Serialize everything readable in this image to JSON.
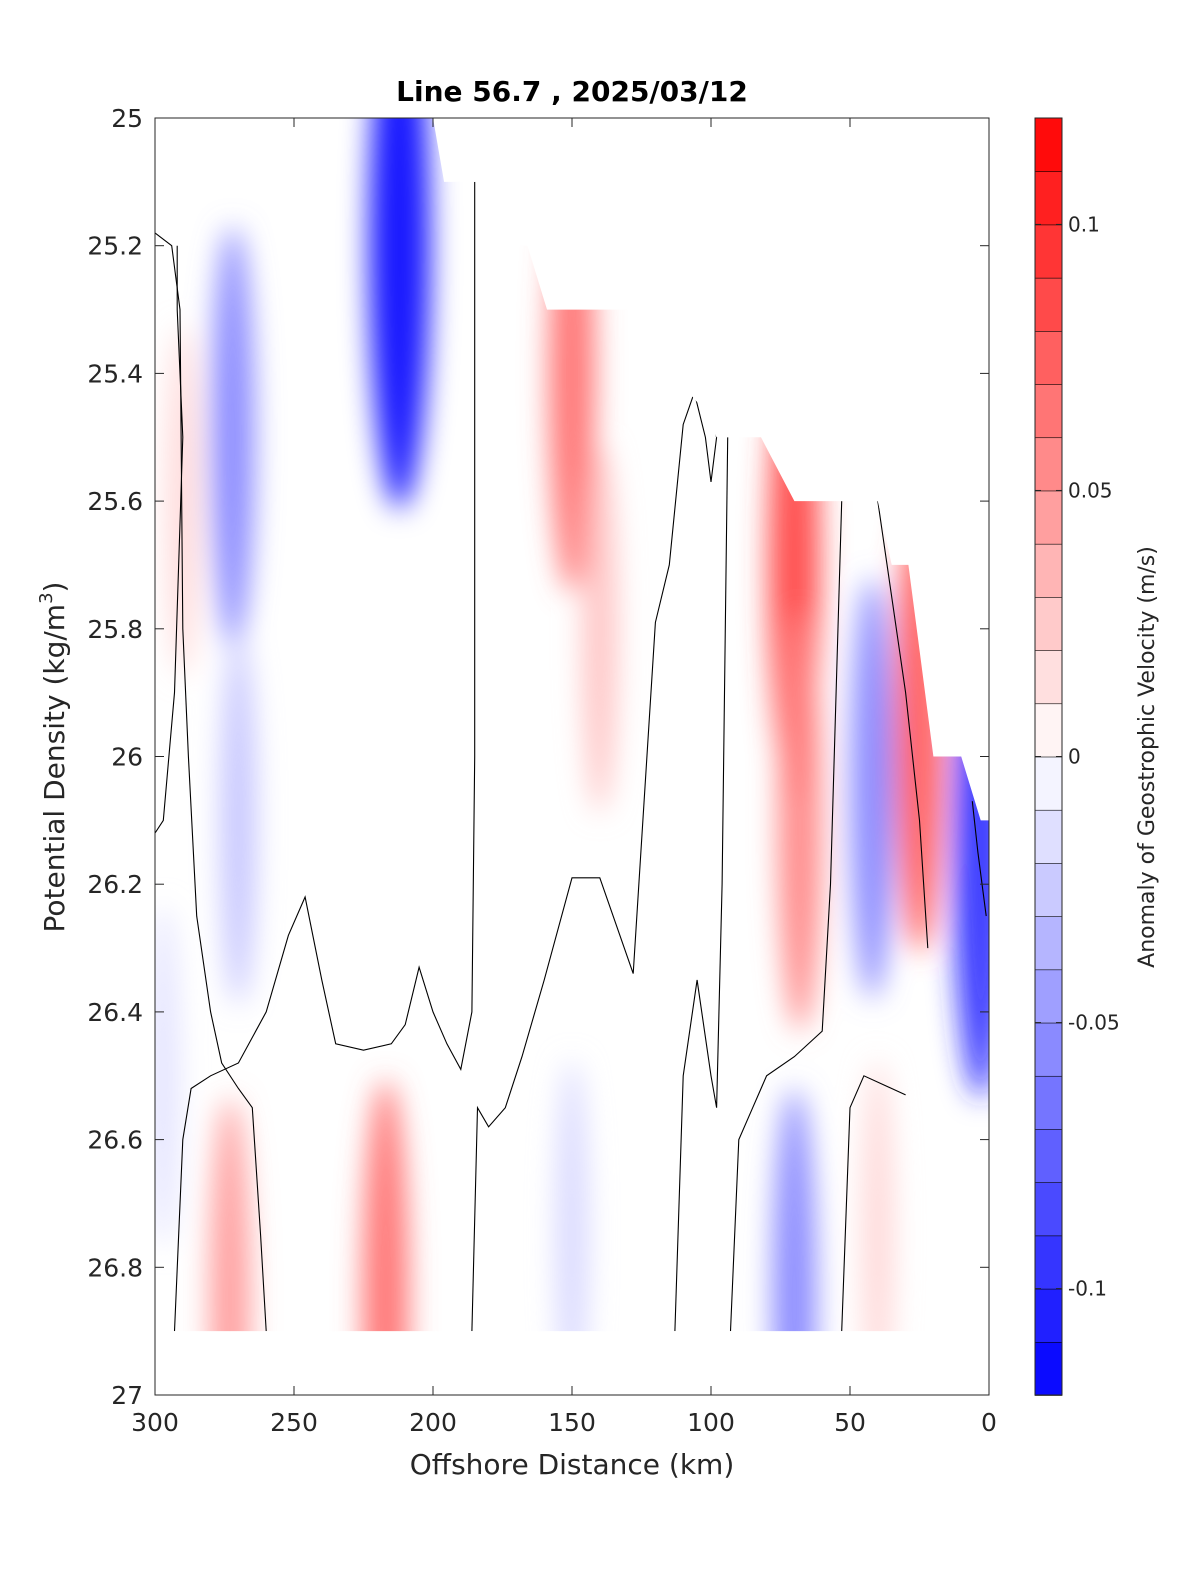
{
  "chart_data": {
    "type": "heatmap",
    "subtype": "filled-contour section",
    "title": "Line 56.7 , 2025/03/12",
    "xlabel": "Offshore Distance (km)",
    "ylabel_main": "Potential Density (kg/m",
    "ylabel_sup": "3",
    "ylabel_close": ")",
    "xlim": [
      300,
      0
    ],
    "ylim": [
      25,
      27
    ],
    "y_reversed": true,
    "x_ticks": [
      "300",
      "250",
      "200",
      "150",
      "100",
      "50",
      "0"
    ],
    "y_ticks": [
      "25",
      "25.2",
      "25.4",
      "25.6",
      "25.8",
      "26",
      "26.2",
      "26.4",
      "26.6",
      "26.8",
      "27"
    ],
    "colorbar": {
      "label": "Anomaly of Geostrophic Velocity (m/s)",
      "range": [
        -0.12,
        0.12
      ],
      "step": 0.01,
      "tick_values": [
        0.1,
        0.05,
        0,
        -0.05,
        -0.1
      ],
      "tick_labels": [
        "0.1",
        "0.05",
        "0",
        "-0.05",
        "-0.1"
      ],
      "colormap": "blue-white-red",
      "color_negative_max": "#0000ff",
      "color_positive_max": "#ff0000",
      "color_zero": "#ffffff"
    },
    "zero_contour_color": "#000000",
    "anomaly_cores": [
      {
        "x": 212,
        "y": 25.2,
        "value": -0.12
      },
      {
        "x": 272,
        "y": 25.5,
        "value": -0.06
      },
      {
        "x": 270,
        "y": 26.1,
        "value": -0.03
      },
      {
        "x": 150,
        "y": 25.4,
        "value": 0.07
      },
      {
        "x": 140,
        "y": 25.8,
        "value": 0.03
      },
      {
        "x": 290,
        "y": 25.6,
        "value": 0.02
      },
      {
        "x": 70,
        "y": 25.7,
        "value": 0.09
      },
      {
        "x": 68,
        "y": 26.1,
        "value": 0.06
      },
      {
        "x": 42,
        "y": 26.05,
        "value": -0.06
      },
      {
        "x": 25,
        "y": 25.95,
        "value": 0.08
      },
      {
        "x": 3,
        "y": 26.15,
        "value": -0.1
      },
      {
        "x": 217,
        "y": 26.85,
        "value": 0.07
      },
      {
        "x": 273,
        "y": 26.85,
        "value": 0.05
      },
      {
        "x": 150,
        "y": 26.75,
        "value": -0.02
      },
      {
        "x": 70,
        "y": 26.85,
        "value": -0.06
      },
      {
        "x": 40,
        "y": 26.75,
        "value": 0.02
      },
      {
        "x": 297,
        "y": 26.5,
        "value": -0.015
      }
    ],
    "data_extent_top": [
      [
        300,
        25
      ],
      [
        200,
        25
      ],
      [
        196,
        25.1
      ],
      [
        178,
        25.1
      ],
      [
        172,
        25.2
      ],
      [
        166,
        25.2
      ],
      [
        159,
        25.3
      ],
      [
        122,
        25.3
      ],
      [
        114,
        25.4
      ],
      [
        104,
        25.45
      ],
      [
        98,
        25.5
      ],
      [
        82,
        25.5
      ],
      [
        70,
        25.6
      ],
      [
        40,
        25.6
      ],
      [
        35,
        25.7
      ],
      [
        29,
        25.7
      ],
      [
        20,
        26.0
      ],
      [
        10,
        26.0
      ],
      [
        3,
        26.1
      ],
      [
        0,
        26.1
      ]
    ],
    "data_extent_bottom_density": 26.9,
    "zero_contour_lines": [
      [
        [
          300,
          25.18
        ],
        [
          294,
          25.2
        ],
        [
          291,
          25.3
        ],
        [
          290,
          25.8
        ],
        [
          288,
          26.0
        ],
        [
          285,
          26.25
        ],
        [
          280,
          26.4
        ],
        [
          276,
          26.48
        ],
        [
          270,
          26.52
        ],
        [
          265,
          26.55
        ],
        [
          262,
          26.75
        ],
        [
          260,
          26.9
        ]
      ],
      [
        [
          300,
          26.12
        ],
        [
          297,
          26.1
        ],
        [
          293,
          25.9
        ],
        [
          290,
          25.5
        ],
        [
          292,
          25.3
        ],
        [
          292,
          25.2
        ]
      ],
      [
        [
          293,
          26.9
        ],
        [
          290,
          26.6
        ],
        [
          287,
          26.52
        ],
        [
          280,
          26.5
        ],
        [
          270,
          26.48
        ],
        [
          260,
          26.4
        ],
        [
          252,
          26.28
        ],
        [
          246,
          26.22
        ],
        [
          240,
          26.35
        ],
        [
          235,
          26.45
        ],
        [
          225,
          26.46
        ],
        [
          215,
          26.45
        ],
        [
          210,
          26.42
        ],
        [
          205,
          26.33
        ],
        [
          200,
          26.4
        ],
        [
          195,
          26.45
        ],
        [
          190,
          26.49
        ],
        [
          186,
          26.4
        ],
        [
          185,
          26.0
        ],
        [
          185,
          25.1
        ]
      ],
      [
        [
          186,
          26.9
        ],
        [
          184,
          26.55
        ],
        [
          180,
          26.58
        ],
        [
          174,
          26.55
        ],
        [
          168,
          26.47
        ],
        [
          160,
          26.35
        ],
        [
          150,
          26.19
        ],
        [
          140,
          26.19
        ],
        [
          128,
          26.34
        ],
        [
          120,
          25.79
        ],
        [
          115,
          25.7
        ],
        [
          110,
          25.48
        ],
        [
          106,
          25.43
        ],
        [
          102,
          25.5
        ],
        [
          100,
          25.57
        ],
        [
          98,
          25.5
        ],
        [
          101,
          25.45
        ]
      ],
      [
        [
          113,
          26.9
        ],
        [
          110,
          26.5
        ],
        [
          105,
          26.35
        ],
        [
          100,
          26.5
        ],
        [
          98,
          26.55
        ],
        [
          96,
          26.2
        ],
        [
          94,
          25.5
        ]
      ],
      [
        [
          93,
          26.9
        ],
        [
          90,
          26.6
        ],
        [
          85,
          26.55
        ],
        [
          80,
          26.5
        ],
        [
          70,
          26.47
        ],
        [
          60,
          26.43
        ],
        [
          57,
          26.2
        ],
        [
          53,
          25.6
        ]
      ],
      [
        [
          53,
          26.9
        ],
        [
          50,
          26.55
        ],
        [
          45,
          26.5
        ],
        [
          35,
          26.52
        ],
        [
          30,
          26.53
        ]
      ],
      [
        [
          40,
          25.6
        ],
        [
          30,
          25.9
        ],
        [
          25,
          26.1
        ],
        [
          22,
          26.3
        ]
      ],
      [
        [
          6,
          26.07
        ],
        [
          4,
          26.15
        ],
        [
          1,
          26.25
        ]
      ]
    ]
  }
}
